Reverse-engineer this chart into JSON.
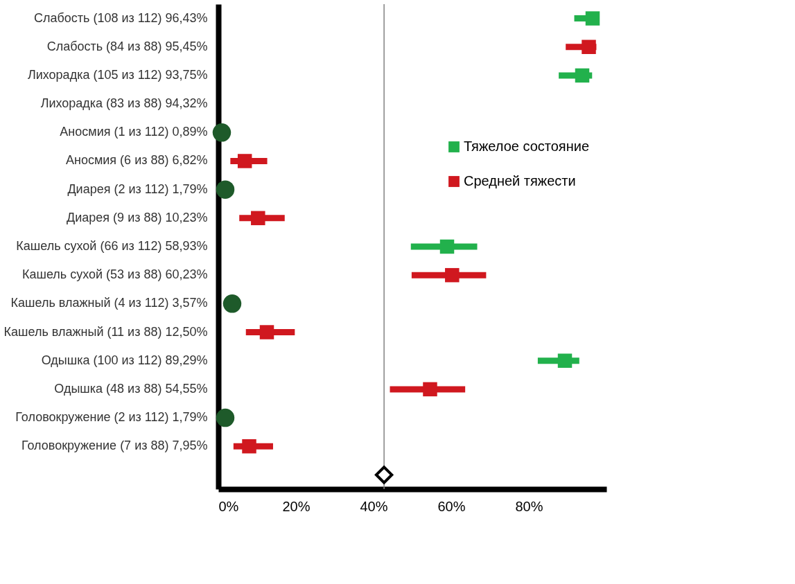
{
  "chart_data": {
    "type": "scatter",
    "orientation": "horizontal",
    "categories": [
      "Слабость (108 из 112) 96,43%",
      "Слабость (84 из 88) 95,45%",
      "Лихорадка (105 из 112) 93,75%",
      "Лихорадка (83 из 88) 94,32%",
      "Аносмия (1 из 112) 0,89%",
      "Аносмия (6 из 88) 6,82%",
      "Диарея (2 из 112) 1,79%",
      "Диарея (9 из 88) 10,23%",
      "Кашель сухой (66 из 112) 58,93%",
      "Кашель сухой (53 из 88) 60,23%",
      "Кашель влажный (4 из 112) 3,57%",
      "Кашель влажный (11 из 88) 12,50%",
      "Одышка (100 из 112) 89,29%",
      "Одышка (48 из 88) 54,55%",
      "Головокружение (2 из 112) 1,79%",
      "Головокружение (7 из 88) 7,95%",
      null
    ],
    "series": [
      {
        "name": "Тяжелое состояние",
        "color": "#22b14c",
        "marker": "square",
        "values": [
          96.43,
          null,
          93.75,
          null,
          0.89,
          null,
          1.79,
          null,
          58.93,
          null,
          3.57,
          null,
          89.29,
          null,
          1.79,
          null,
          null
        ],
        "colors": [
          "#22b14c",
          null,
          "#22b14c",
          null,
          "#1e5a2a",
          null,
          "#1e5a2a",
          null,
          "#22b14c",
          null,
          "#1e5a2a",
          null,
          "#22b14c",
          null,
          "#1e5a2a",
          null,
          null
        ],
        "errors": [
          [
            91.7,
            97.7
          ],
          null,
          [
            87.7,
            96.3
          ],
          null,
          null,
          null,
          null,
          null,
          [
            49.6,
            66.7
          ],
          null,
          null,
          null,
          [
            82.3,
            93.0
          ],
          null,
          null,
          null,
          null
        ]
      },
      {
        "name": "Средней тяжести",
        "color": "#d0181f",
        "marker": "square",
        "values": [
          null,
          95.45,
          null,
          null,
          null,
          6.82,
          null,
          10.23,
          null,
          60.23,
          null,
          12.5,
          null,
          54.55,
          null,
          7.95,
          null
        ],
        "errors": [
          null,
          [
            89.5,
            97.4
          ],
          null,
          null,
          null,
          [
            3.1,
            12.6
          ],
          null,
          [
            5.4,
            17.1
          ],
          null,
          [
            49.8,
            69.0
          ],
          null,
          [
            7.1,
            19.7
          ],
          null,
          [
            44.2,
            63.6
          ],
          null,
          [
            3.9,
            14.1
          ],
          null
        ]
      },
      {
        "color": "#000000",
        "marker": "diamond",
        "values": [
          null,
          null,
          null,
          null,
          null,
          null,
          null,
          null,
          null,
          null,
          null,
          null,
          null,
          null,
          null,
          null,
          42.7
        ]
      }
    ],
    "ref_lines": [
      {
        "axis": "x",
        "value": 42.7,
        "color": "#808080"
      }
    ],
    "xlim": [
      0,
      100
    ],
    "xticks": [
      {
        "value": 0,
        "label": "0%"
      },
      {
        "value": 20,
        "label": "20%"
      },
      {
        "value": 40,
        "label": "40%"
      },
      {
        "value": 60,
        "label": "60%"
      },
      {
        "value": 80,
        "label": "80%"
      }
    ],
    "grid": false,
    "legend": "right"
  }
}
